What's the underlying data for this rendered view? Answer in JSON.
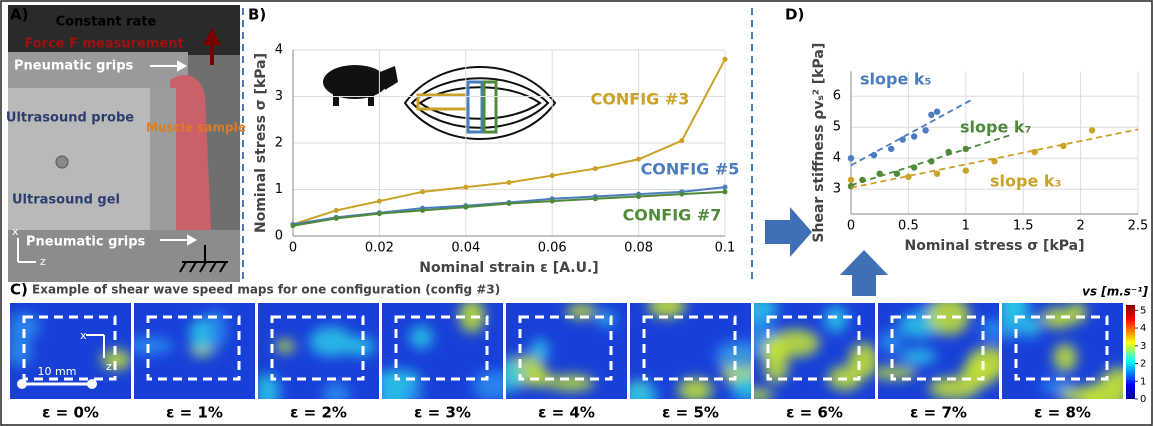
{
  "panels": {
    "a": {
      "label": "A)",
      "top": "Constant rate",
      "force": "Force F measurement",
      "grips_top": "Pneumatic grips",
      "probe": "Ultrasound probe",
      "muscle": "Muscle sample",
      "gel": "Ultrasound gel",
      "grips_bottom": "Pneumatic grips",
      "axis_x": "x",
      "axis_z": "z"
    },
    "c": {
      "label": "C)",
      "title": "Example of shear wave speed maps for one configuration (config #3)",
      "scale": "10 mm",
      "axis_x": "x",
      "axis_z": "z",
      "maps": [
        "ε = 0%",
        "ε = 1%",
        "ε = 2%",
        "ε = 3%",
        "ε = 4%",
        "ε = 5%",
        "ε = 6%",
        "ε = 7%",
        "ε = 8%"
      ],
      "colorbar": {
        "label": "vs [m.s⁻¹]",
        "ticks": [
          0,
          1,
          2,
          3,
          4,
          5
        ],
        "lim": [
          0,
          5.3
        ]
      }
    }
  },
  "chart_data": [
    {
      "type": "line",
      "label": "B)",
      "xlabel": "Nominal strain ε [A.U.]",
      "ylabel": "Nominal stress σ [kPa]",
      "x": [
        0,
        0.01,
        0.02,
        0.03,
        0.04,
        0.05,
        0.06,
        0.07,
        0.08,
        0.09,
        0.1
      ],
      "series": [
        {
          "name": "CONFIG #3",
          "color": "#c9a227",
          "values": [
            0.25,
            0.55,
            0.75,
            0.95,
            1.05,
            1.15,
            1.3,
            1.45,
            1.65,
            2.05,
            3.8
          ]
        },
        {
          "name": "CONFIG #5",
          "color": "#4a7cc0",
          "values": [
            0.25,
            0.4,
            0.5,
            0.6,
            0.65,
            0.72,
            0.8,
            0.85,
            0.9,
            0.95,
            1.05
          ]
        },
        {
          "name": "CONFIG #7",
          "color": "#4f8a3a",
          "values": [
            0.22,
            0.38,
            0.48,
            0.55,
            0.62,
            0.7,
            0.75,
            0.8,
            0.85,
            0.9,
            0.95
          ]
        }
      ],
      "xlim": [
        0,
        0.1
      ],
      "xticks": [
        0,
        0.02,
        0.04,
        0.06,
        0.08,
        0.1
      ],
      "ylim": [
        0,
        4
      ],
      "yticks": [
        0,
        1,
        2,
        3,
        4
      ],
      "grid": true
    },
    {
      "type": "scatter",
      "label": "D)",
      "xlabel": "Nominal stress σ [kPa]",
      "ylabel": "Shear stiffness ρvₛ² [kPa]",
      "series": [
        {
          "name": "slope k₅",
          "color": "#4a7cc0",
          "x": [
            0,
            0.2,
            0.35,
            0.45,
            0.55,
            0.65,
            0.7,
            0.75
          ],
          "values": [
            4.0,
            4.1,
            4.3,
            4.6,
            4.7,
            4.9,
            5.4,
            5.5
          ]
        },
        {
          "name": "slope k₇",
          "color": "#4f8a3a",
          "x": [
            0,
            0.1,
            0.25,
            0.4,
            0.55,
            0.7,
            0.85,
            1.0
          ],
          "values": [
            3.1,
            3.3,
            3.5,
            3.5,
            3.7,
            3.9,
            4.2,
            4.3
          ]
        },
        {
          "name": "slope k₃",
          "color": "#c9a227",
          "x": [
            0,
            0.5,
            0.75,
            1.0,
            1.25,
            1.6,
            1.85,
            2.1
          ],
          "values": [
            3.3,
            3.4,
            3.5,
            3.6,
            3.9,
            4.2,
            4.4,
            4.9
          ]
        }
      ],
      "xlim": [
        0,
        2.5
      ],
      "xticks": [
        0,
        0.5,
        1,
        1.5,
        2,
        2.5
      ],
      "ylim": [
        2.2,
        6.8
      ],
      "yticks": [
        3,
        4,
        5,
        6
      ],
      "grid": true
    }
  ]
}
